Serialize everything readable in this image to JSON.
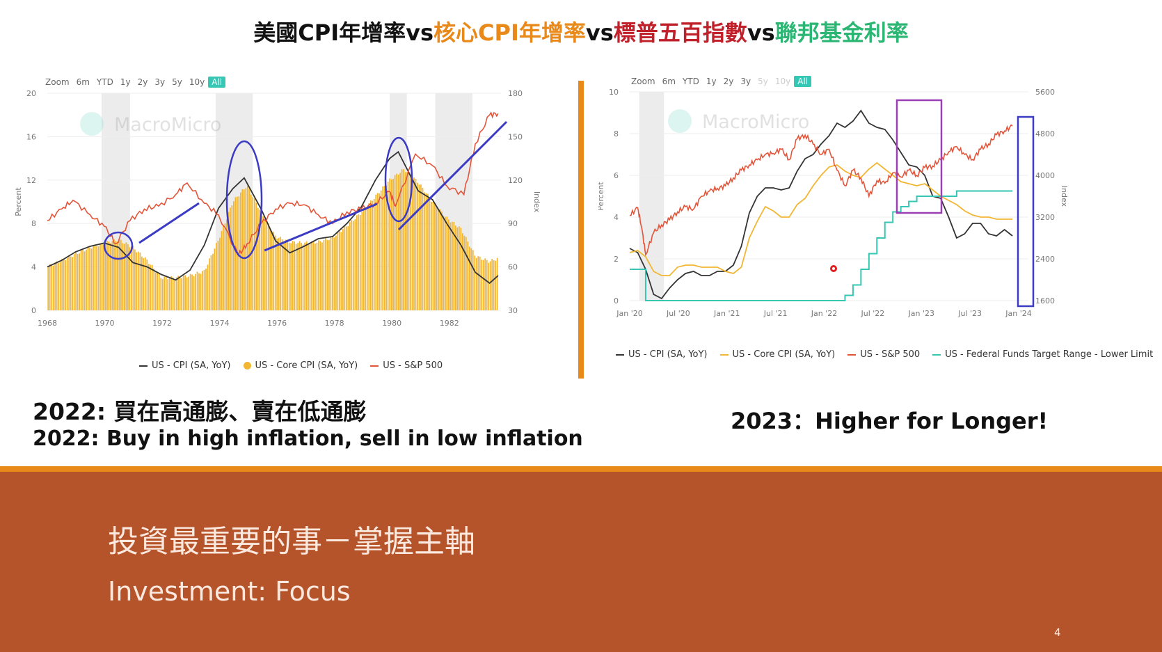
{
  "title": {
    "segments": [
      {
        "text": "美國CPI年增率",
        "color": "#111111"
      },
      {
        "text": "vs",
        "color": "#111111"
      },
      {
        "text": "核心CPI年增率",
        "color": "#e8891a"
      },
      {
        "text": "vs",
        "color": "#111111"
      },
      {
        "text": "標普五百指數",
        "color": "#c0202a"
      },
      {
        "text": "vs",
        "color": "#111111"
      },
      {
        "text": "聯邦基金利率",
        "color": "#2bb673"
      }
    ]
  },
  "left_chart": {
    "zoom": {
      "label": "Zoom",
      "options": [
        "6m",
        "YTD",
        "1y",
        "2y",
        "3y",
        "5y",
        "10y",
        "All"
      ],
      "active": "All"
    },
    "watermark": "MacroMicro",
    "legend": [
      {
        "label": "US - CPI (SA, YoY)",
        "color": "#333333",
        "kind": "line"
      },
      {
        "label": "US - Core CPI (SA, YoY)",
        "color": "#f2b632",
        "kind": "dot"
      },
      {
        "label": "US - S&P 500",
        "color": "#e2553a",
        "kind": "line"
      }
    ]
  },
  "right_chart": {
    "zoom": {
      "label": "Zoom",
      "options": [
        "6m",
        "YTD",
        "1y",
        "2y",
        "3y",
        "5y",
        "10y",
        "All"
      ],
      "active": "All",
      "disabled": [
        "5y",
        "10y"
      ]
    },
    "watermark": "MacroMicro",
    "legend": [
      {
        "label": "US - CPI (SA, YoY)",
        "color": "#333333",
        "kind": "line"
      },
      {
        "label": "US - Core CPI (SA, YoY)",
        "color": "#f2b632",
        "kind": "line"
      },
      {
        "label": "US - S&P 500",
        "color": "#e2553a",
        "kind": "line"
      },
      {
        "label": "US - Federal Funds Target Range - Lower Limit",
        "color": "#35c7b3",
        "kind": "line"
      }
    ]
  },
  "chart_data": [
    {
      "type": "bar",
      "ylabel": "Percent",
      "y2label": "Index",
      "ylim": [
        0,
        20
      ],
      "y2lim": [
        30,
        180
      ],
      "y_ticks": [
        "0",
        "4",
        "8",
        "12",
        "16",
        "20"
      ],
      "y2_ticks": [
        "30",
        "60",
        "90",
        "120",
        "150",
        "180"
      ],
      "x_ticks": [
        "1968",
        "1970",
        "1972",
        "1974",
        "1976",
        "1978",
        "1980",
        "1982"
      ],
      "xlim": [
        1968,
        1983.9
      ],
      "recessions": [
        [
          1969.9,
          1970.9
        ],
        [
          1973.9,
          1975.2
        ],
        [
          1980.0,
          1980.6
        ],
        [
          1981.6,
          1982.9
        ]
      ],
      "series": [
        {
          "name": "US - Core CPI (SA, YoY)",
          "kind": "bar",
          "axis": "left",
          "color": "#f2b632",
          "x": [
            1968.0,
            1968.5,
            1969.0,
            1969.5,
            1970.0,
            1970.5,
            1971.0,
            1971.5,
            1972.0,
            1972.5,
            1973.0,
            1973.5,
            1974.0,
            1974.5,
            1975.0,
            1975.5,
            1976.0,
            1976.5,
            1977.0,
            1977.5,
            1978.0,
            1978.5,
            1979.0,
            1979.5,
            1980.0,
            1980.5,
            1981.0,
            1981.5,
            1982.0,
            1982.5,
            1983.0,
            1983.5,
            1983.8
          ],
          "y": [
            4.0,
            4.6,
            5.2,
            5.8,
            6.2,
            6.5,
            5.8,
            4.6,
            3.0,
            3.0,
            3.2,
            3.6,
            6.5,
            10.0,
            11.5,
            9.0,
            6.8,
            6.3,
            6.2,
            6.3,
            6.7,
            7.8,
            9.0,
            10.5,
            12.0,
            13.0,
            11.8,
            10.0,
            8.5,
            7.5,
            5.0,
            4.5,
            4.8
          ]
        },
        {
          "name": "US - CPI (SA, YoY)",
          "kind": "line",
          "axis": "left",
          "color": "#333333",
          "x": [
            1968.0,
            1968.5,
            1969.0,
            1969.5,
            1970.0,
            1970.5,
            1971.0,
            1971.5,
            1972.0,
            1972.5,
            1973.0,
            1973.5,
            1974.0,
            1974.5,
            1974.9,
            1975.5,
            1976.0,
            1976.5,
            1977.0,
            1977.5,
            1978.0,
            1978.5,
            1979.0,
            1979.5,
            1980.0,
            1980.3,
            1981.0,
            1981.5,
            1982.0,
            1982.5,
            1983.0,
            1983.5,
            1983.8
          ],
          "y": [
            4.0,
            4.6,
            5.4,
            5.9,
            6.2,
            5.8,
            4.4,
            4.0,
            3.3,
            2.8,
            3.7,
            6.0,
            9.4,
            11.2,
            12.2,
            9.3,
            6.4,
            5.3,
            5.9,
            6.6,
            6.8,
            8.0,
            9.5,
            12.0,
            14.0,
            14.6,
            11.0,
            10.2,
            8.0,
            6.0,
            3.5,
            2.5,
            3.2
          ]
        },
        {
          "name": "US - S&P 500",
          "kind": "line",
          "axis": "right",
          "color": "#e2553a",
          "x": [
            1968.0,
            1968.5,
            1968.9,
            1969.5,
            1970.0,
            1970.4,
            1970.9,
            1971.4,
            1971.9,
            1972.5,
            1972.9,
            1973.5,
            1974.0,
            1974.7,
            1975.0,
            1975.5,
            1976.0,
            1976.5,
            1977.0,
            1977.5,
            1978.0,
            1978.5,
            1979.0,
            1979.5,
            1980.0,
            1980.2,
            1980.9,
            1981.5,
            1982.0,
            1982.6,
            1983.0,
            1983.5,
            1983.8
          ],
          "y": [
            92,
            100,
            106,
            96,
            88,
            76,
            92,
            100,
            102,
            110,
            118,
            104,
            96,
            68,
            76,
            90,
            100,
            104,
            103,
            96,
            90,
            98,
            100,
            104,
            112,
            102,
            138,
            130,
            116,
            110,
            145,
            165,
            166
          ]
        }
      ]
    },
    {
      "type": "line",
      "ylabel": "Percent",
      "y2label": "Index",
      "ylim": [
        0,
        10
      ],
      "y2lim": [
        1600,
        5600
      ],
      "y_ticks": [
        "0",
        "2",
        "4",
        "6",
        "8",
        "10"
      ],
      "y2_ticks": [
        "1600",
        "2400",
        "3200",
        "4000",
        "4800",
        "5600"
      ],
      "x_ticks": [
        "Jan '20",
        "Jul '20",
        "Jan '21",
        "Jul '21",
        "Jan '22",
        "Jul '22",
        "Jan '23",
        "Jul '23",
        "Jan '24"
      ],
      "xlim": [
        0,
        50
      ],
      "recessions": [
        [
          1.2,
          4.3
        ]
      ],
      "series": [
        {
          "name": "US - CPI (SA, YoY)",
          "kind": "line",
          "axis": "left",
          "color": "#333333",
          "x": [
            0,
            1,
            2,
            3,
            4,
            5,
            6,
            7,
            8,
            9,
            10,
            11,
            12,
            13,
            14,
            15,
            16,
            17,
            18,
            19,
            20,
            21,
            22,
            23,
            24,
            25,
            26,
            27,
            28,
            29,
            30,
            31,
            32,
            33,
            34,
            35,
            36,
            37,
            38,
            39,
            40,
            41,
            42,
            43,
            44,
            45,
            46,
            47,
            48
          ],
          "y": [
            2.5,
            2.3,
            1.5,
            0.3,
            0.1,
            0.6,
            1.0,
            1.3,
            1.4,
            1.2,
            1.2,
            1.4,
            1.4,
            1.7,
            2.6,
            4.2,
            5.0,
            5.4,
            5.4,
            5.3,
            5.4,
            6.2,
            6.8,
            7.0,
            7.5,
            7.9,
            8.5,
            8.3,
            8.6,
            9.1,
            8.5,
            8.3,
            8.2,
            7.7,
            7.1,
            6.5,
            6.4,
            6.0,
            5.0,
            4.9,
            4.0,
            3.0,
            3.2,
            3.7,
            3.7,
            3.2,
            3.1,
            3.4,
            3.1
          ]
        },
        {
          "name": "US - Core CPI (SA, YoY)",
          "kind": "line",
          "axis": "left",
          "color": "#f2b632",
          "x": [
            0,
            1,
            2,
            3,
            4,
            5,
            6,
            7,
            8,
            9,
            10,
            11,
            12,
            13,
            14,
            15,
            16,
            17,
            18,
            19,
            20,
            21,
            22,
            23,
            24,
            25,
            26,
            27,
            28,
            29,
            30,
            31,
            32,
            33,
            34,
            35,
            36,
            37,
            38,
            39,
            40,
            41,
            42,
            43,
            44,
            45,
            46,
            47,
            48
          ],
          "y": [
            2.3,
            2.4,
            2.1,
            1.4,
            1.2,
            1.2,
            1.6,
            1.7,
            1.7,
            1.6,
            1.6,
            1.6,
            1.4,
            1.3,
            1.6,
            3.0,
            3.8,
            4.5,
            4.3,
            4.0,
            4.0,
            4.6,
            4.9,
            5.5,
            6.0,
            6.4,
            6.5,
            6.2,
            6.0,
            5.9,
            6.3,
            6.6,
            6.3,
            6.0,
            5.7,
            5.6,
            5.5,
            5.6,
            5.3,
            5.0,
            4.8,
            4.6,
            4.3,
            4.1,
            4.0,
            4.0,
            3.9,
            3.9,
            3.9
          ]
        },
        {
          "name": "US - S&P 500",
          "kind": "line",
          "axis": "right",
          "color": "#e2553a",
          "x": [
            0,
            1,
            1.5,
            2,
            3,
            4,
            5,
            6,
            7,
            8,
            9,
            10,
            11,
            12,
            13,
            14,
            15,
            16,
            17,
            18,
            19,
            20,
            21,
            22,
            23,
            24,
            25,
            26,
            27,
            28,
            29,
            30,
            31,
            32,
            33,
            34,
            35,
            36,
            37,
            38,
            39,
            40,
            41,
            42,
            43,
            44,
            45,
            46,
            47,
            48
          ],
          "y": [
            3230,
            3380,
            3000,
            2480,
            2900,
            3050,
            3150,
            3300,
            3400,
            3350,
            3600,
            3700,
            3750,
            3800,
            3950,
            4100,
            4200,
            4300,
            4400,
            4420,
            4500,
            4300,
            4700,
            4770,
            4600,
            4400,
            4500,
            4100,
            3800,
            4100,
            3950,
            3600,
            3900,
            3850,
            4050,
            3970,
            4100,
            4000,
            4150,
            4180,
            4300,
            4450,
            4550,
            4400,
            4300,
            4500,
            4600,
            4780,
            4850,
            4950
          ]
        },
        {
          "name": "US - Federal Funds Target Range - Lower Limit",
          "kind": "step",
          "axis": "left",
          "color": "#35c7b3",
          "x": [
            0,
            1.5,
            2,
            4.5,
            26,
            27,
            28,
            29,
            30,
            31,
            32,
            33,
            34,
            35,
            36,
            37,
            38,
            40,
            41,
            48
          ],
          "y": [
            1.5,
            1.5,
            0.0,
            0.0,
            0.0,
            0.25,
            0.75,
            1.5,
            2.25,
            3.0,
            3.75,
            4.25,
            4.5,
            4.75,
            5.0,
            5.0,
            5.0,
            5.0,
            5.25,
            5.25
          ]
        }
      ]
    }
  ],
  "captions": {
    "left_zh": "2022: 買在高通膨、賣在低通膨",
    "left_en": "2022: Buy in high inflation, sell in low inflation",
    "right": "2023：Higher for Longer!"
  },
  "footer": {
    "title_zh": "投資最重要的事－掌握主軸",
    "title_en": "Investment: Focus",
    "page_number": "4"
  },
  "colors": {
    "accent_orange": "#e8891a",
    "footer_bg": "#b5532a",
    "annotation_blue": "#3b3bc4",
    "annotation_purple": "#9b3fb5"
  }
}
